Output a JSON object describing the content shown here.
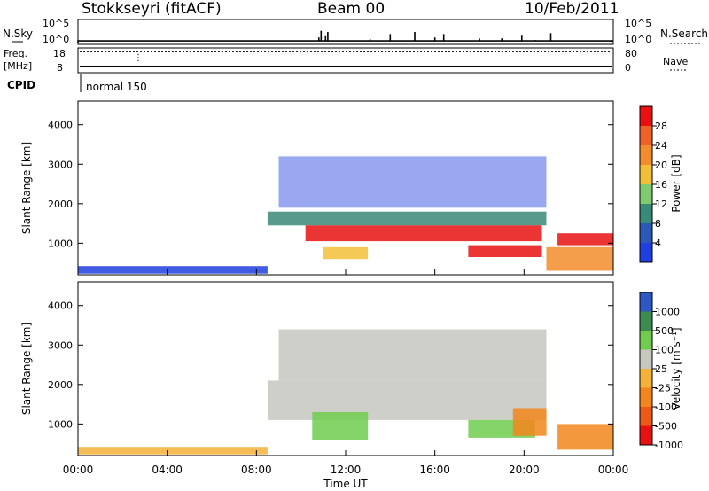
{
  "header": {
    "station": "Stokkseyri (fitACF)",
    "beam": "Beam 00",
    "date": "10/Feb/2011"
  },
  "panels": {
    "nsky": {
      "label": "N.Sky",
      "left_ticks": [
        "10^5",
        "10^0"
      ],
      "right_ticks": [
        "10^5",
        "10^0"
      ],
      "right_label": "N.Search"
    },
    "freq": {
      "label": "Freq.",
      "unit": "[MHz]",
      "left_ticks": [
        "18",
        "8"
      ],
      "right_ticks": [
        "80",
        "0"
      ],
      "right_label": "Nave"
    },
    "cpid": {
      "label": "CPID",
      "value": "normal 150"
    }
  },
  "x_axis": {
    "label": "Time UT",
    "ticks": [
      "00:00",
      "04:00",
      "08:00",
      "12:00",
      "16:00",
      "20:00",
      "00:00"
    ]
  },
  "colors": {
    "power": [
      "#1f3fe0",
      "#2a59b6",
      "#3a8a78",
      "#7ecb72",
      "#f2c037",
      "#f28c2c",
      "#f2602a",
      "#e81010"
    ],
    "velocity": [
      "#e61212",
      "#ee5a16",
      "#f2861c",
      "#f4b23a",
      "#c7c7bf",
      "#6fcc4f",
      "#3e8a50",
      "#2d58c4"
    ]
  },
  "chart_data": [
    {
      "type": "line",
      "title": "N.Sky",
      "x_hours": [
        0,
        10.8,
        10.9,
        11.1,
        11.2,
        13.1,
        14.0,
        15.1,
        16.0,
        16.4,
        18.0,
        19.0,
        19.9,
        20.5,
        21.2,
        23.9
      ],
      "values_log10": [
        0,
        1.2,
        2.8,
        1.5,
        2.5,
        0.8,
        2.0,
        2.5,
        1.2,
        2.0,
        1.0,
        1.0,
        1.6,
        0.6,
        2.2,
        0.2
      ],
      "ylim": [
        "10^0",
        "10^5"
      ]
    },
    {
      "type": "line",
      "title": "Freq.",
      "unit": "[MHz]",
      "series": [
        {
          "name": "Freq.",
          "x_hours": [
            0,
            24
          ],
          "values": [
            10,
            10
          ]
        },
        {
          "name": "Nave",
          "x_hours": [
            0,
            24
          ],
          "values": [
            72,
            72
          ]
        }
      ],
      "ylim_left": [
        8,
        18
      ],
      "ylim_right": [
        0,
        80
      ]
    },
    {
      "type": "heatmap",
      "quantity": "power",
      "ylabel": "Slant Range [km]",
      "xlabel": "Time UT",
      "yticks": [
        1000,
        2000,
        3000,
        4000
      ],
      "xlim_hours": [
        0,
        24
      ],
      "ylim": [
        200,
        4600
      ],
      "colorbar": {
        "label": "Power [dB]",
        "ticks": [
          4,
          8,
          12,
          16,
          20,
          24,
          28
        ],
        "range": [
          0,
          32
        ]
      },
      "regions": [
        {
          "hours": [
            0,
            8.5
          ],
          "range_km": [
            230,
            420
          ],
          "level": 0
        },
        {
          "hours": [
            8.5,
            21.0
          ],
          "range_km": [
            1450,
            1800
          ],
          "level": 2
        },
        {
          "hours": [
            10.2,
            20.8
          ],
          "range_km": [
            1050,
            1450
          ],
          "level": 7
        },
        {
          "hours": [
            11.0,
            13.0
          ],
          "range_km": [
            600,
            900
          ],
          "level": 4
        },
        {
          "hours": [
            17.5,
            20.8
          ],
          "range_km": [
            650,
            950
          ],
          "level": 7
        },
        {
          "hours": [
            21.5,
            24.0
          ],
          "range_km": [
            950,
            1250
          ],
          "level": 7
        },
        {
          "hours": [
            21.0,
            24.0
          ],
          "range_km": [
            300,
            900
          ],
          "level": 5
        },
        {
          "hours": [
            9.0,
            21.0
          ],
          "range_km": [
            1900,
            3200
          ],
          "level": 0
        }
      ]
    },
    {
      "type": "heatmap",
      "quantity": "velocity",
      "ylabel": "Slant Range [km]",
      "xlabel": "Time UT",
      "yticks": [
        1000,
        2000,
        3000,
        4000
      ],
      "xlim_hours": [
        0,
        24
      ],
      "ylim": [
        200,
        4600
      ],
      "colorbar": {
        "label": "Velocity [m s⁻¹]",
        "ticks": [
          1000,
          500,
          100,
          25,
          -25,
          -100,
          -500,
          -1000
        ]
      },
      "regions": [
        {
          "hours": [
            0,
            8.5
          ],
          "range_km": [
            230,
            420
          ],
          "level": 3
        },
        {
          "hours": [
            8.5,
            21.0
          ],
          "range_km": [
            1100,
            2100
          ],
          "level": 4
        },
        {
          "hours": [
            10.5,
            13.0
          ],
          "range_km": [
            600,
            1300
          ],
          "level": 5
        },
        {
          "hours": [
            17.5,
            20.5
          ],
          "range_km": [
            650,
            1100
          ],
          "level": 5
        },
        {
          "hours": [
            19.5,
            21.0
          ],
          "range_km": [
            700,
            1400
          ],
          "level": 2
        },
        {
          "hours": [
            21.5,
            24.0
          ],
          "range_km": [
            350,
            1000
          ],
          "level": 2
        },
        {
          "hours": [
            9.0,
            21.0
          ],
          "range_km": [
            2100,
            3400
          ],
          "level": 4
        }
      ]
    }
  ]
}
